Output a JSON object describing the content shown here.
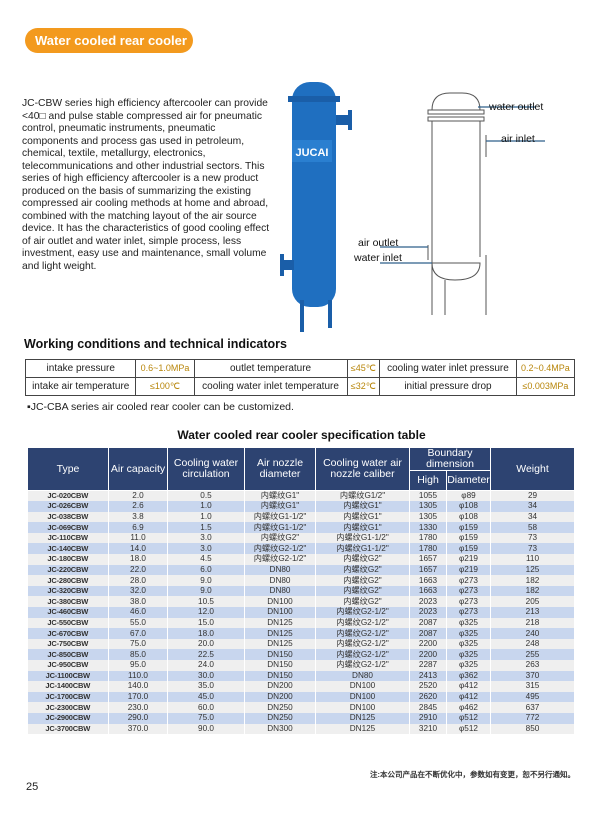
{
  "header": {
    "badge": "Water cooled rear cooler"
  },
  "intro": "JC-CBW series high efficiency aftercooler can provide <40□ and pulse stable compressed air for pneumatic control, pneumatic instruments, pneumatic components and process gas used in petroleum, chemical, textile, metallurgy, electronics, telecommunications and other industrial sectors. This series of high efficiency aftercooler is a new product produced on the basis of summarizing the existing compressed air cooling methods at home and abroad, combined with the matching layout of the air source device. It has the characteristics of good cooling effect of air outlet and water inlet, simple process, less investment, easy use and maintenance, small volume and light weight.",
  "product": {
    "logo": "JUCAI",
    "color": "#1f6fc0"
  },
  "diagram": {
    "water_outlet": "water outlet",
    "air_inlet": "air inlet",
    "air_outlet": "air outlet",
    "water_inlet": "water inlet"
  },
  "working": {
    "title": "Working conditions and technical indicators",
    "rows": [
      [
        "intake pressure",
        "0.6~1.0MPa",
        "outlet temperature",
        "≤45℃",
        "cooling water inlet pressure",
        "0.2~0.4MPa"
      ],
      [
        "intake air temperature",
        "≤100℃",
        "cooling water inlet temperature",
        "≤32℃",
        "initial pressure drop",
        "≤0.003MPa"
      ]
    ],
    "note": "▪JC-CBA series air cooled rear cooler can be customized."
  },
  "spec": {
    "title": "Water cooled rear cooler specification table",
    "headers": {
      "type": "Type",
      "air_capacity": "Air capacity",
      "circulation": "Cooling water circulation",
      "nozzle": "Air nozzle diameter",
      "caliber": "Cooling water air nozzle caliber",
      "boundary": "Boundary dimension",
      "high": "High",
      "diameter": "Diameter",
      "weight": "Weight"
    },
    "rows": [
      [
        "JC-020CBW",
        "2.0",
        "0.5",
        "内螺纹G1\"",
        "内螺纹G1/2\"",
        "1055",
        "φ89",
        "29"
      ],
      [
        "JC-026CBW",
        "2.6",
        "1.0",
        "内螺纹G1\"",
        "内螺纹G1\"",
        "1305",
        "φ108",
        "34"
      ],
      [
        "JC-038CBW",
        "3.8",
        "1.0",
        "内螺纹G1-1/2\"",
        "内螺纹G1\"",
        "1305",
        "φ108",
        "34"
      ],
      [
        "JC-069CBW",
        "6.9",
        "1.5",
        "内螺纹G1-1/2\"",
        "内螺纹G1\"",
        "1330",
        "φ159",
        "58"
      ],
      [
        "JC-110CBW",
        "11.0",
        "3.0",
        "内螺纹G2\"",
        "内螺纹G1-1/2\"",
        "1780",
        "φ159",
        "73"
      ],
      [
        "JC-140CBW",
        "14.0",
        "3.0",
        "内螺纹G2-1/2\"",
        "内螺纹G1-1/2\"",
        "1780",
        "φ159",
        "73"
      ],
      [
        "JC-180CBW",
        "18.0",
        "4.5",
        "内螺纹G2-1/2\"",
        "内螺纹G2\"",
        "1657",
        "φ219",
        "110"
      ],
      [
        "JC-220CBW",
        "22.0",
        "6.0",
        "DN80",
        "内螺纹G2\"",
        "1657",
        "φ219",
        "125"
      ],
      [
        "JC-280CBW",
        "28.0",
        "9.0",
        "DN80",
        "内螺纹G2\"",
        "1663",
        "φ273",
        "182"
      ],
      [
        "JC-320CBW",
        "32.0",
        "9.0",
        "DN80",
        "内螺纹G2\"",
        "1663",
        "φ273",
        "182"
      ],
      [
        "JC-380CBW",
        "38.0",
        "10.5",
        "DN100",
        "内螺纹G2\"",
        "2023",
        "φ273",
        "205"
      ],
      [
        "JC-460CBW",
        "46.0",
        "12.0",
        "DN100",
        "内螺纹G2-1/2\"",
        "2023",
        "φ273",
        "213"
      ],
      [
        "JC-550CBW",
        "55.0",
        "15.0",
        "DN125",
        "内螺纹G2-1/2\"",
        "2087",
        "φ325",
        "218"
      ],
      [
        "JC-670CBW",
        "67.0",
        "18.0",
        "DN125",
        "内螺纹G2-1/2\"",
        "2087",
        "φ325",
        "240"
      ],
      [
        "JC-750CBW",
        "75.0",
        "20.0",
        "DN125",
        "内螺纹G2-1/2\"",
        "2200",
        "φ325",
        "248"
      ],
      [
        "JC-850CBW",
        "85.0",
        "22.5",
        "DN150",
        "内螺纹G2-1/2\"",
        "2200",
        "φ325",
        "255"
      ],
      [
        "JC-950CBW",
        "95.0",
        "24.0",
        "DN150",
        "内螺纹G2-1/2\"",
        "2287",
        "φ325",
        "263"
      ],
      [
        "JC-1100CBW",
        "110.0",
        "30.0",
        "DN150",
        "DN80",
        "2413",
        "φ362",
        "370"
      ],
      [
        "JC-1400CBW",
        "140.0",
        "35.0",
        "DN200",
        "DN100",
        "2520",
        "φ412",
        "315"
      ],
      [
        "JC-1700CBW",
        "170.0",
        "45.0",
        "DN200",
        "DN100",
        "2620",
        "φ412",
        "495"
      ],
      [
        "JC-2300CBW",
        "230.0",
        "60.0",
        "DN250",
        "DN100",
        "2845",
        "φ462",
        "637"
      ],
      [
        "JC-2900CBW",
        "290.0",
        "75.0",
        "DN250",
        "DN125",
        "2910",
        "φ512",
        "772"
      ],
      [
        "JC-3700CBW",
        "370.0",
        "90.0",
        "DN300",
        "DN125",
        "3210",
        "φ512",
        "850"
      ]
    ],
    "footnote": "注:本公司产品在不断优化中，参数如有变更，恕不另行通知。"
  },
  "page_number": "25"
}
